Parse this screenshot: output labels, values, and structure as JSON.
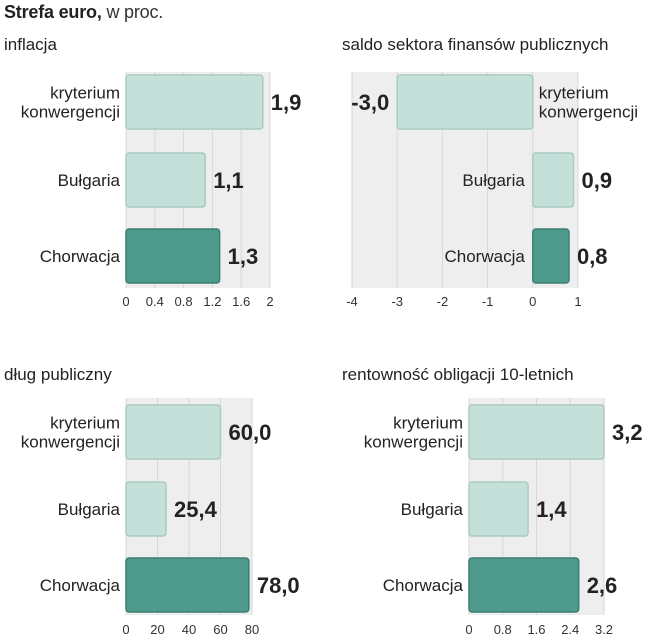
{
  "header": {
    "title_bold": "Strefa euro,",
    "title_rest": " w proc."
  },
  "colors": {
    "light_bar": "#c5e0d9",
    "light_bar_stroke": "#a9cbc2",
    "highlight_bar": "#4e9b8c",
    "highlight_bar_stroke": "#3b7f72",
    "plot_bg": "#eeeeee",
    "grid": "#d7d7d7",
    "text": "#222222"
  },
  "chart_data": [
    {
      "type": "bar",
      "orientation": "horizontal",
      "title": "inflacja",
      "categories": [
        "kryterium\nkonwergencji",
        "Bułgaria",
        "Chorwacja"
      ],
      "values": [
        1.9,
        1.1,
        1.3
      ],
      "value_labels": [
        "1,9",
        "1,1",
        "1,3"
      ],
      "highlight": [
        false,
        false,
        true
      ],
      "xlim": [
        0,
        2
      ],
      "xticks": [
        0,
        0.4,
        0.8,
        1.2,
        1.6,
        2
      ],
      "xtick_labels": [
        "0",
        "0.4",
        "0.8",
        "1.2",
        "1.6",
        "2"
      ],
      "category_labels_side": "left"
    },
    {
      "type": "bar",
      "orientation": "horizontal",
      "title": "saldo sektora finansów publicznych",
      "categories": [
        "kryterium\nkonwergencji",
        "Bułgaria",
        "Chorwacja"
      ],
      "values": [
        -3.0,
        0.9,
        0.8
      ],
      "value_labels": [
        "-3,0",
        "0,9",
        "0,8"
      ],
      "highlight": [
        false,
        false,
        true
      ],
      "xlim": [
        -4,
        1
      ],
      "xticks": [
        -4,
        -3,
        -2,
        -1,
        0,
        1
      ],
      "xtick_labels": [
        "-4",
        "-3",
        "-2",
        "-1",
        "0",
        "1"
      ],
      "category_labels_side": "inside"
    },
    {
      "type": "bar",
      "orientation": "horizontal",
      "title": "dług publiczny",
      "categories": [
        "kryterium\nkonwergencji",
        "Bułgaria",
        "Chorwacja"
      ],
      "values": [
        60.0,
        25.4,
        78.0
      ],
      "value_labels": [
        "60,0",
        "25,4",
        "78,0"
      ],
      "highlight": [
        false,
        false,
        true
      ],
      "xlim": [
        0,
        80
      ],
      "xticks": [
        0,
        20,
        40,
        60,
        80
      ],
      "xtick_labels": [
        "0",
        "20",
        "40",
        "60",
        "80"
      ],
      "category_labels_side": "left"
    },
    {
      "type": "bar",
      "orientation": "horizontal",
      "title": "rentowność obligacji 10-letnich",
      "categories": [
        "kryterium\nkonwergencji",
        "Bułgaria",
        "Chorwacja"
      ],
      "values": [
        3.2,
        1.4,
        2.6
      ],
      "value_labels": [
        "3,2",
        "1,4",
        "2,6"
      ],
      "highlight": [
        false,
        false,
        true
      ],
      "xlim": [
        0,
        3.2
      ],
      "xticks": [
        0,
        0.8,
        1.6,
        2.4,
        3.2
      ],
      "xtick_labels": [
        "0",
        "0.8",
        "1.6",
        "2.4",
        "3.2"
      ],
      "category_labels_side": "left"
    }
  ]
}
